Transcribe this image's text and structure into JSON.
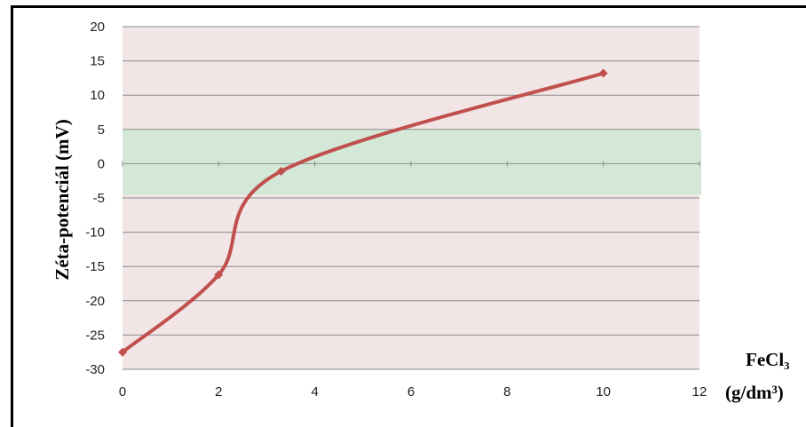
{
  "chart_data": {
    "type": "line",
    "title": "",
    "ylabel": "Zéta-potenciál (mV)",
    "xlabel_line1": "FeCl₃",
    "xlabel_line2": "(g/dm³)",
    "xlim": [
      0,
      12
    ],
    "ylim": [
      -30,
      20
    ],
    "x_ticks": [
      "0",
      "2",
      "4",
      "6",
      "8",
      "10",
      "12"
    ],
    "y_ticks": [
      "20",
      "15",
      "10",
      "5",
      "0",
      "-5",
      "-10",
      "-15",
      "-20",
      "-25",
      "-30"
    ],
    "grid": true,
    "legend": "none",
    "shaded_band": {
      "y_from": -4.5,
      "y_to": 5,
      "color": "#d4e8d7"
    },
    "background_color": "#f1e5e5",
    "series": [
      {
        "color": "#c0504d",
        "x": [
          0,
          2,
          3.3,
          10
        ],
        "y": [
          -27.5,
          -16.2,
          -1.1,
          13.2
        ]
      }
    ]
  }
}
